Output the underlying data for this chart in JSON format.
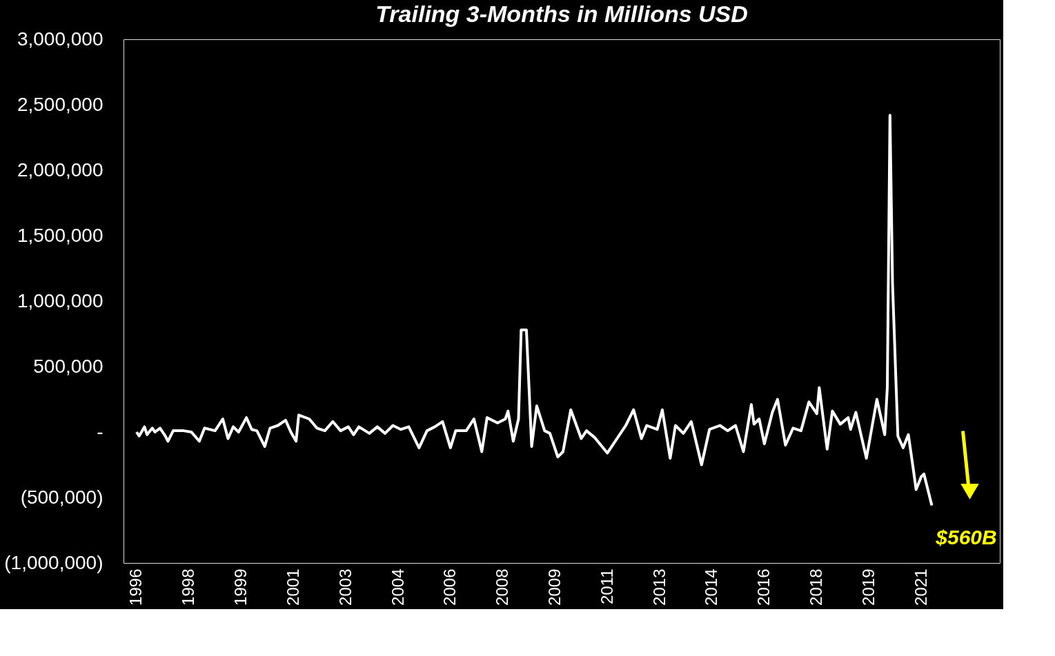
{
  "chart_data": {
    "type": "line",
    "title": "Trailing 3-Months in Millions USD",
    "x": [
      "1996-06",
      "1996-07",
      "1996-09",
      "1996-10",
      "1996-12",
      "1997-01",
      "1997-03",
      "1997-05",
      "1997-06",
      "1997-08",
      "1997-12",
      "1998-03",
      "1998-06",
      "1998-08",
      "1998-12",
      "1999-03",
      "1999-05",
      "1999-07",
      "1999-09",
      "1999-12",
      "2000-02",
      "2000-04",
      "2000-07",
      "2000-09",
      "2000-12",
      "2001-03",
      "2001-05",
      "2001-07",
      "2001-08",
      "2001-12",
      "2002-03",
      "2002-06",
      "2002-09",
      "2002-12",
      "2003-03",
      "2003-05",
      "2003-07",
      "2003-11",
      "2004-02",
      "2004-05",
      "2004-08",
      "2004-11",
      "2005-02",
      "2005-06",
      "2005-09",
      "2005-12",
      "2006-03",
      "2006-06",
      "2006-08",
      "2006-12",
      "2007-03",
      "2007-06",
      "2007-08",
      "2007-12",
      "2008-03",
      "2008-04",
      "2008-06",
      "2008-08",
      "2008-09",
      "2008-11",
      "2009-01",
      "2009-03",
      "2009-06",
      "2009-08",
      "2009-11",
      "2010-01",
      "2010-04",
      "2010-08",
      "2010-10",
      "2011-01",
      "2011-06",
      "2012-01",
      "2012-04",
      "2012-07",
      "2012-09",
      "2013-01",
      "2013-03",
      "2013-06",
      "2013-08",
      "2013-11",
      "2014-02",
      "2014-06",
      "2014-09",
      "2015-01",
      "2015-04",
      "2015-07",
      "2015-10",
      "2016-01",
      "2016-02",
      "2016-04",
      "2016-06",
      "2016-09",
      "2016-11",
      "2017-02",
      "2017-05",
      "2017-08",
      "2017-11",
      "2018-02",
      "2018-03",
      "2018-06",
      "2018-08",
      "2018-11",
      "2019-02",
      "2019-03",
      "2019-05",
      "2019-09",
      "2020-01",
      "2020-04",
      "2020-05",
      "2020-06",
      "2020-07",
      "2020-09",
      "2020-11",
      "2021-01",
      "2021-03",
      "2021-04",
      "2021-06",
      "2021-07",
      "2021-10"
    ],
    "series": [
      {
        "color": "#ffffff",
        "values": [
          0,
          -30000,
          40000,
          -20000,
          30000,
          0,
          30000,
          -30000,
          -70000,
          10000,
          10000,
          0,
          -70000,
          30000,
          10000,
          100000,
          -50000,
          40000,
          0,
          110000,
          20000,
          10000,
          -110000,
          30000,
          50000,
          90000,
          0,
          -70000,
          130000,
          100000,
          30000,
          10000,
          80000,
          10000,
          40000,
          -20000,
          40000,
          -10000,
          40000,
          -10000,
          50000,
          20000,
          40000,
          -120000,
          10000,
          40000,
          80000,
          -120000,
          10000,
          10000,
          100000,
          -150000,
          110000,
          70000,
          100000,
          160000,
          -70000,
          100000,
          780000,
          780000,
          -110000,
          200000,
          10000,
          -10000,
          -190000,
          -150000,
          170000,
          -50000,
          10000,
          -40000,
          -160000,
          50000,
          170000,
          -50000,
          50000,
          20000,
          170000,
          -200000,
          50000,
          -10000,
          80000,
          -250000,
          20000,
          50000,
          10000,
          50000,
          -150000,
          210000,
          60000,
          100000,
          -90000,
          150000,
          250000,
          -100000,
          30000,
          10000,
          230000,
          140000,
          340000,
          -130000,
          160000,
          60000,
          110000,
          20000,
          150000,
          -200000,
          250000,
          -20000,
          340000,
          2420000,
          1130000,
          -30000,
          -120000,
          -20000,
          -290000,
          -440000,
          -340000,
          -320000,
          -560000
        ]
      }
    ],
    "xlim": [
      "1996-01",
      "2023-12"
    ],
    "xticks": [
      {
        "value": "1996-06",
        "label": "1996"
      },
      {
        "value": "1998-02",
        "label": "1998"
      },
      {
        "value": "1999-10",
        "label": "1999"
      },
      {
        "value": "2001-06",
        "label": "2001"
      },
      {
        "value": "2003-02",
        "label": "2003"
      },
      {
        "value": "2004-10",
        "label": "2004"
      },
      {
        "value": "2006-06",
        "label": "2006"
      },
      {
        "value": "2008-02",
        "label": "2008"
      },
      {
        "value": "2009-10",
        "label": "2009"
      },
      {
        "value": "2011-06",
        "label": "2011"
      },
      {
        "value": "2013-02",
        "label": "2013"
      },
      {
        "value": "2014-10",
        "label": "2014"
      },
      {
        "value": "2016-06",
        "label": "2016"
      },
      {
        "value": "2018-02",
        "label": "2018"
      },
      {
        "value": "2019-10",
        "label": "2019"
      },
      {
        "value": "2021-06",
        "label": "2021"
      }
    ],
    "ylim": [
      -1000000,
      3000000
    ],
    "yticks": [
      {
        "value": -1000000,
        "label": "(1,000,000)"
      },
      {
        "value": -500000,
        "label": "(500,000)"
      },
      {
        "value": 0,
        "label": "-"
      },
      {
        "value": 500000,
        "label": "500,000"
      },
      {
        "value": 1000000,
        "label": "1,000,000"
      },
      {
        "value": 1500000,
        "label": "1,500,000"
      },
      {
        "value": 2000000,
        "label": "2,000,000"
      },
      {
        "value": 2500000,
        "label": "2,500,000"
      },
      {
        "value": 3000000,
        "label": "3,000,000"
      }
    ],
    "annotations": [
      {
        "text": "$560B",
        "x": "2021-10",
        "y": -560000
      }
    ],
    "grid": false,
    "marker": "none",
    "line_style": "solid"
  }
}
